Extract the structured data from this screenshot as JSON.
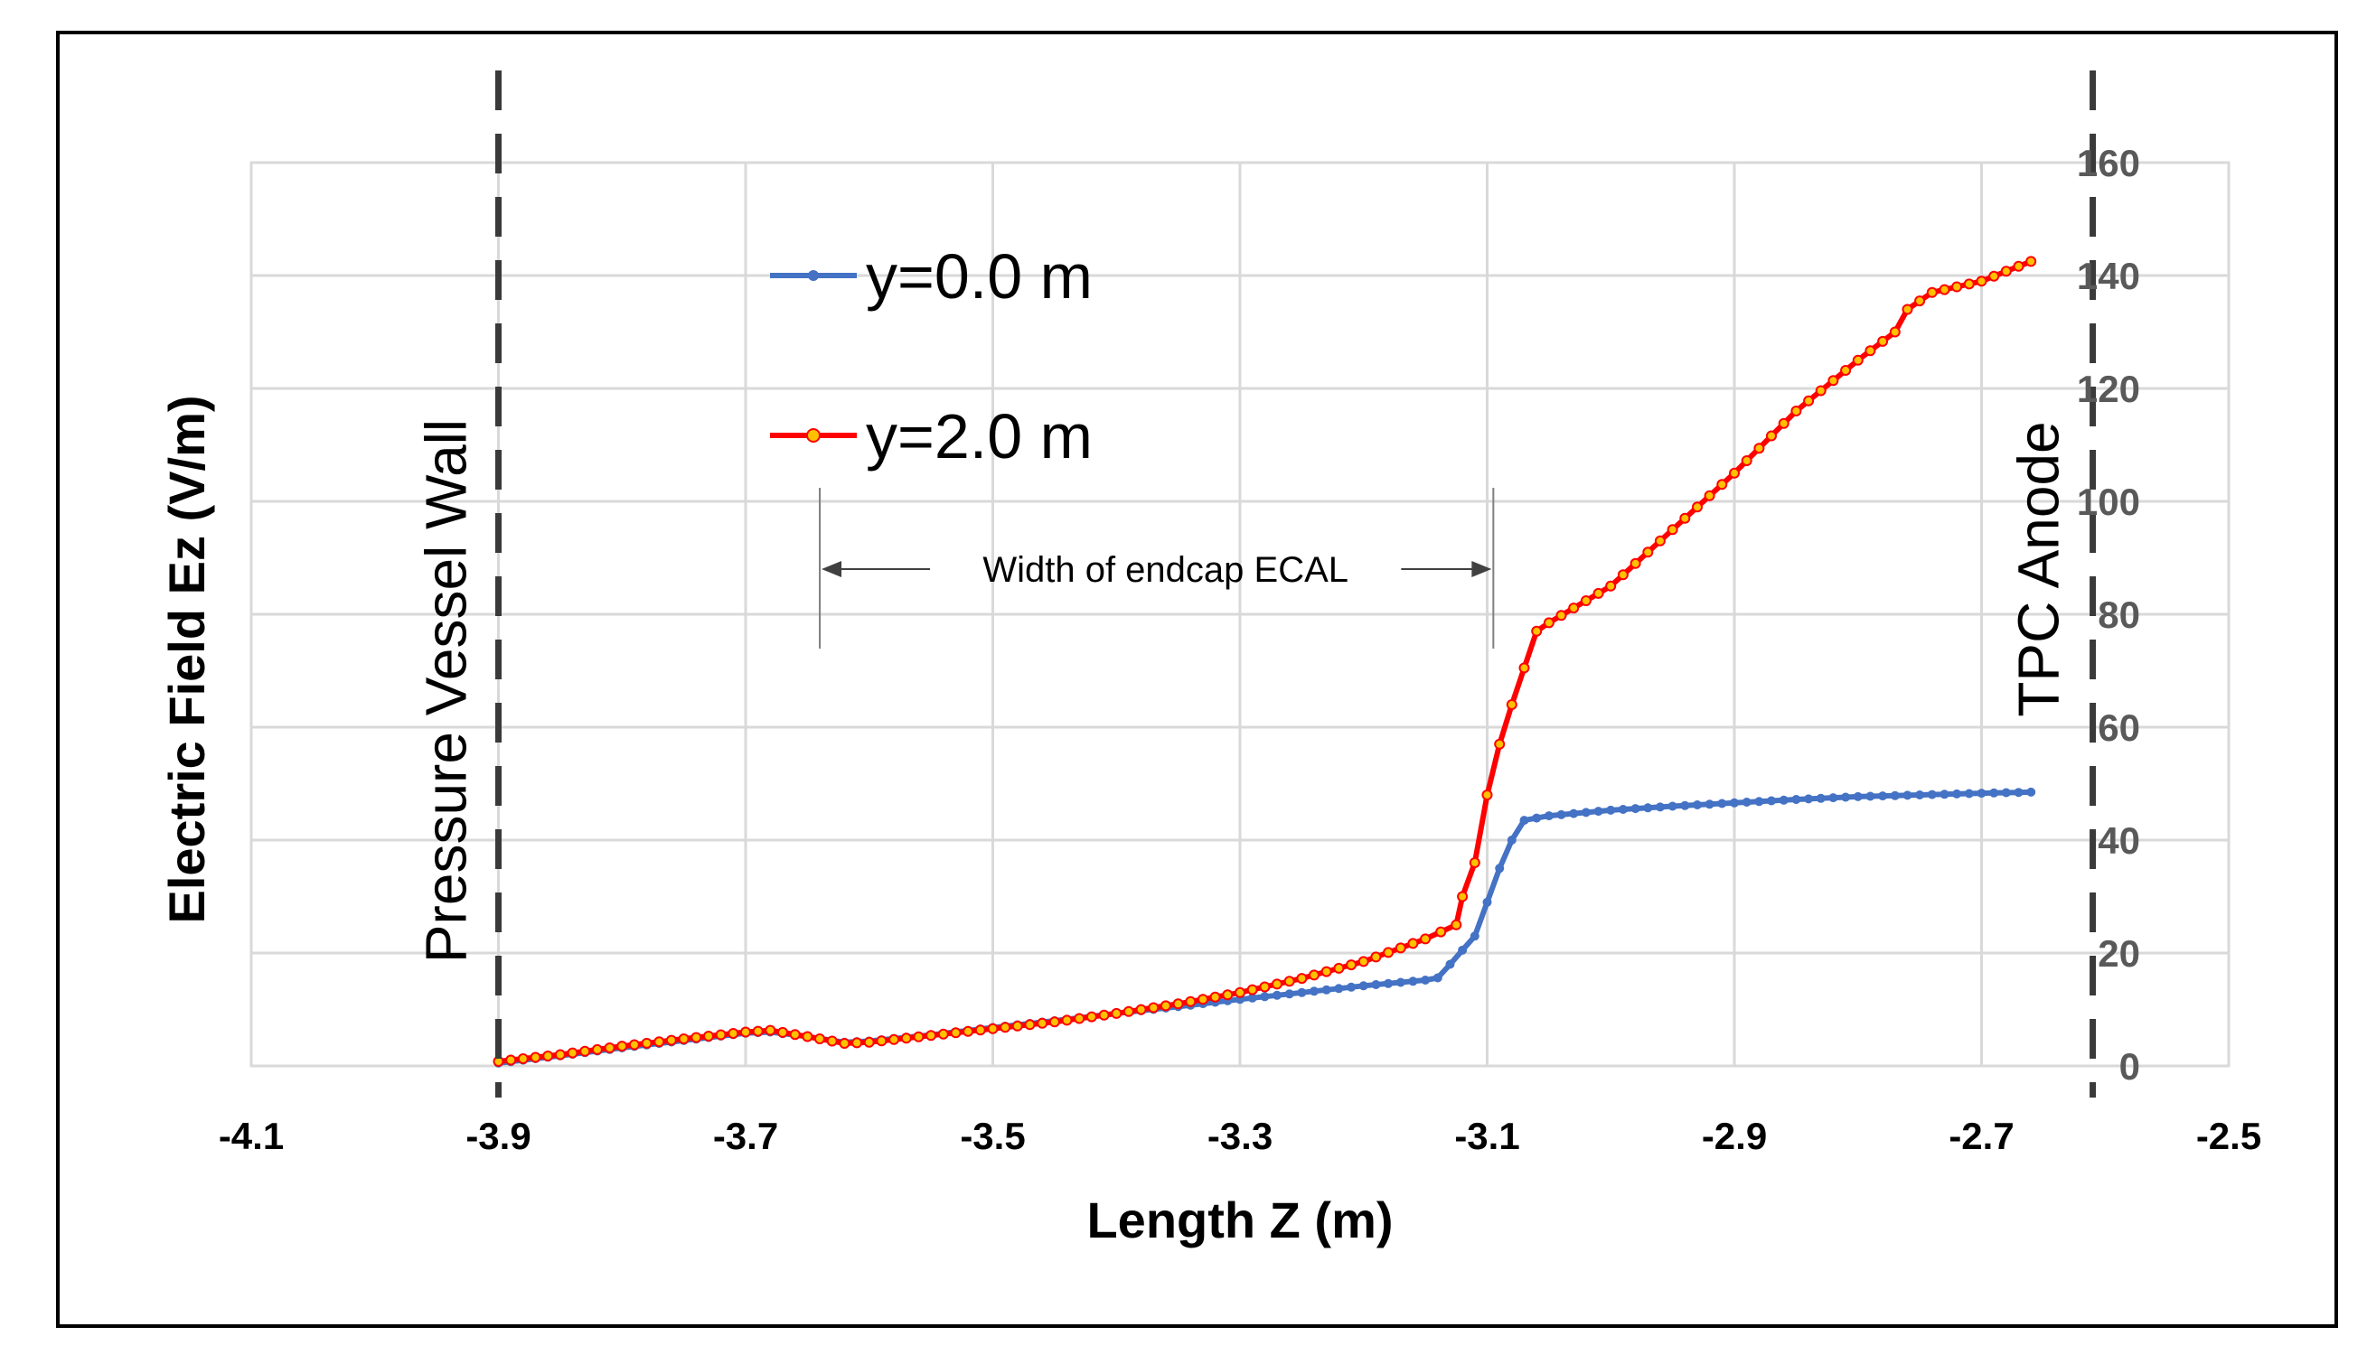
{
  "chart_data": {
    "type": "line",
    "title": "",
    "xlabel": "Length Z  (m)",
    "ylabel": "Electric Field Ez (V/m)",
    "xlim": [
      -4.1,
      -2.5
    ],
    "ylim": [
      0,
      160
    ],
    "xticks": [
      "-4.1",
      "-3.9",
      "-3.7",
      "-3.5",
      "-3.3",
      "-3.1",
      "-2.9",
      "-2.7",
      "-2.5"
    ],
    "yticks": [
      "0",
      "20",
      "40",
      "60",
      "80",
      "100",
      "120",
      "140",
      "160"
    ],
    "grid": true,
    "legend_position": "upper-left-inside",
    "series": [
      {
        "name": "y=0.0 m",
        "color": "#4472C4",
        "points": [
          [
            -3.9,
            0.5
          ],
          [
            -3.85,
            1.8
          ],
          [
            -3.8,
            3.2
          ],
          [
            -3.75,
            4.5
          ],
          [
            -3.7,
            5.8
          ],
          [
            -3.68,
            6.0
          ],
          [
            -3.65,
            5.2
          ],
          [
            -3.62,
            4.2
          ],
          [
            -3.6,
            4.4
          ],
          [
            -3.55,
            5.5
          ],
          [
            -3.5,
            6.8
          ],
          [
            -3.45,
            8.0
          ],
          [
            -3.4,
            9.3
          ],
          [
            -3.35,
            10.5
          ],
          [
            -3.3,
            11.8
          ],
          [
            -3.25,
            13.0
          ],
          [
            -3.2,
            14.2
          ],
          [
            -3.15,
            15.2
          ],
          [
            -3.14,
            15.6
          ],
          [
            -3.13,
            18.0
          ],
          [
            -3.12,
            20.5
          ],
          [
            -3.11,
            23.0
          ],
          [
            -3.1,
            29.0
          ],
          [
            -3.09,
            35.0
          ],
          [
            -3.08,
            40.0
          ],
          [
            -3.07,
            43.5
          ],
          [
            -3.05,
            44.3
          ],
          [
            -3.0,
            45.3
          ],
          [
            -2.95,
            46.0
          ],
          [
            -2.9,
            46.6
          ],
          [
            -2.85,
            47.2
          ],
          [
            -2.8,
            47.7
          ],
          [
            -2.75,
            48.0
          ],
          [
            -2.7,
            48.3
          ],
          [
            -2.66,
            48.5
          ]
        ]
      },
      {
        "name": "y=2.0 m",
        "color": "#FF0000",
        "marker_fill": "#FFC000",
        "points": [
          [
            -3.9,
            0.8
          ],
          [
            -3.85,
            2.0
          ],
          [
            -3.8,
            3.5
          ],
          [
            -3.75,
            4.8
          ],
          [
            -3.7,
            6.0
          ],
          [
            -3.68,
            6.3
          ],
          [
            -3.65,
            5.2
          ],
          [
            -3.62,
            4.0
          ],
          [
            -3.6,
            4.2
          ],
          [
            -3.55,
            5.4
          ],
          [
            -3.5,
            6.6
          ],
          [
            -3.45,
            7.8
          ],
          [
            -3.4,
            9.3
          ],
          [
            -3.35,
            11.0
          ],
          [
            -3.3,
            13.0
          ],
          [
            -3.25,
            15.5
          ],
          [
            -3.2,
            18.5
          ],
          [
            -3.15,
            22.5
          ],
          [
            -3.125,
            25.0
          ],
          [
            -3.12,
            30.0
          ],
          [
            -3.11,
            36.0
          ],
          [
            -3.1,
            48.0
          ],
          [
            -3.09,
            57.0
          ],
          [
            -3.08,
            64.0
          ],
          [
            -3.06,
            77.0
          ],
          [
            -3.05,
            78.5
          ],
          [
            -3.0,
            85.0
          ],
          [
            -2.95,
            95.0
          ],
          [
            -2.9,
            105.0
          ],
          [
            -2.85,
            116.0
          ],
          [
            -2.8,
            125.0
          ],
          [
            -2.77,
            130.0
          ],
          [
            -2.76,
            134.0
          ],
          [
            -2.74,
            137.0
          ],
          [
            -2.7,
            139.0
          ],
          [
            -2.66,
            142.5
          ]
        ]
      }
    ],
    "reference_lines": [
      {
        "x": -3.9,
        "label": "Pressure Vessel Wall"
      },
      {
        "x": -2.61,
        "label": "TPC Anode"
      }
    ],
    "annotation": {
      "text": "Width of endcap ECAL",
      "x_start": -3.64,
      "x_end": -3.095,
      "y": 88
    }
  }
}
